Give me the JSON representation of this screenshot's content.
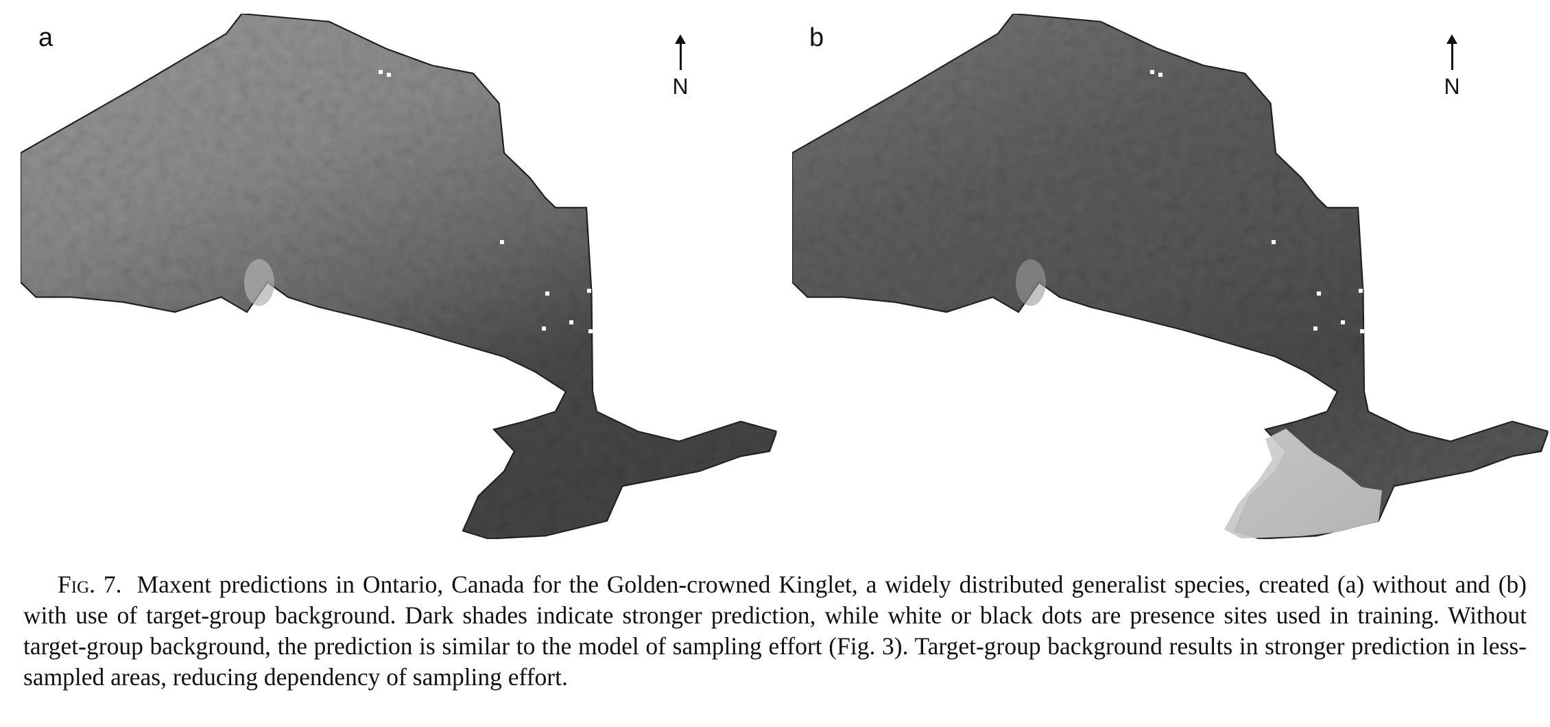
{
  "figure": {
    "label": "Fig. 7.",
    "caption": "Maxent predictions in Ontario, Canada for the Golden-crowned Kinglet, a widely distributed generalist species, created (a) without and (b) with use of target-group background. Dark shades indicate stronger prediction, while white or black dots are presence sites used in training. Without target-group background, the prediction is similar to the model of sampling effort (Fig. 3). Target-group background results in stronger prediction in less-sampled areas, reducing dependency of sampling effort."
  },
  "panels": [
    {
      "letter": "a",
      "north_label": "N",
      "colors": {
        "north_tone": "#8f8f8f",
        "mid_tone": "#7a7a7a",
        "south_tone": "#4d4d4d",
        "great_lakes_peninsula": "#4a4a4a"
      }
    },
    {
      "letter": "b",
      "north_label": "N",
      "colors": {
        "north_tone": "#6a6a6a",
        "mid_tone": "#5c5c5c",
        "south_tone": "#3d3d3d",
        "great_lakes_peninsula": "#c8c8c8"
      }
    }
  ]
}
